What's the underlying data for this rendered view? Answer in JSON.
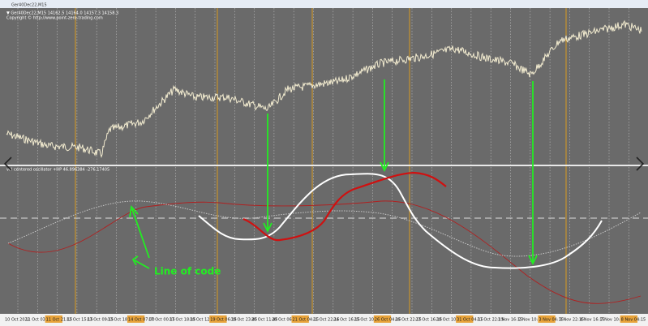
{
  "window": {
    "title": "Ger40Dec22,M15"
  },
  "main_panel": {
    "info": "▼ Ger40Dec22,M15  14162.5 14164.0 14157.3 14158.3",
    "copyright": "Copyright © http://www.point-zero-trading.com"
  },
  "sub_panel": {
    "info": "vol centered oscillator +HP 46.896384 -276.17405"
  },
  "annotation": {
    "text": "Line of code"
  },
  "x_axis": {
    "labels": [
      "10 Oct 2022",
      "11 Oct 03:15",
      "11 Oct 21:15",
      "12 Oct 15:15",
      "13 Oct 09:15",
      "13 Oct 18:45",
      "14 Oct 07:00",
      "17 Oct 00:15",
      "17 Oct 18:15",
      "18 Oct 12:15",
      "19 Oct 06:15",
      "19 Oct 23:45",
      "20 Oct 11:45",
      "20 Oct 06:00",
      "21 Oct 04:15",
      "21 Oct 22:15",
      "24 Oct 16:15",
      "25 Oct 10:15",
      "26 Oct 04:15",
      "26 Oct 22:15",
      "27 Oct 16:15",
      "28 Oct 10:15",
      "31 Oct 04:15",
      "31 Oct 22:15",
      "1 Nov 16:15",
      "2 Nov 10:15",
      "3 Nov 04:15",
      "3 Nov 22:15",
      "4 Nov 16:15",
      "7 Nov 10:15",
      "8 Nov 04:15"
    ]
  }
}
